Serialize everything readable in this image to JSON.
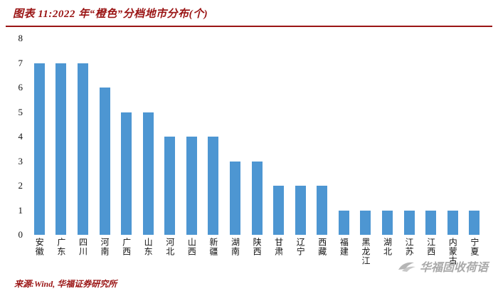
{
  "header": {
    "title": "图表 11:2022 年“橙色”分档地市分布(个)"
  },
  "chart_data": {
    "type": "bar",
    "title": "2022 年“橙色”分档地市分布(个)",
    "categories": [
      "安徽",
      "广东",
      "四川",
      "河南",
      "广西",
      "山东",
      "河北",
      "山西",
      "新疆",
      "湖南",
      "陕西",
      "甘肃",
      "辽宁",
      "西藏",
      "福建",
      "黑龙江",
      "湖北",
      "江苏",
      "江西",
      "内蒙古",
      "宁夏"
    ],
    "values": [
      7,
      7,
      7,
      6,
      5,
      5,
      4,
      4,
      4,
      3,
      3,
      2,
      2,
      2,
      1,
      1,
      1,
      1,
      1,
      1,
      1
    ],
    "xlabel": "",
    "ylabel": "",
    "ylim": [
      0,
      8
    ],
    "yticks": [
      0,
      1,
      2,
      3,
      4,
      5,
      6,
      7,
      8
    ],
    "grid": "off",
    "legend": "none",
    "bar_color": "#4d96d2"
  },
  "footer": {
    "source": "来源:Wind, 华福证券研究所"
  },
  "watermark": {
    "text": "华福固收荷语"
  }
}
